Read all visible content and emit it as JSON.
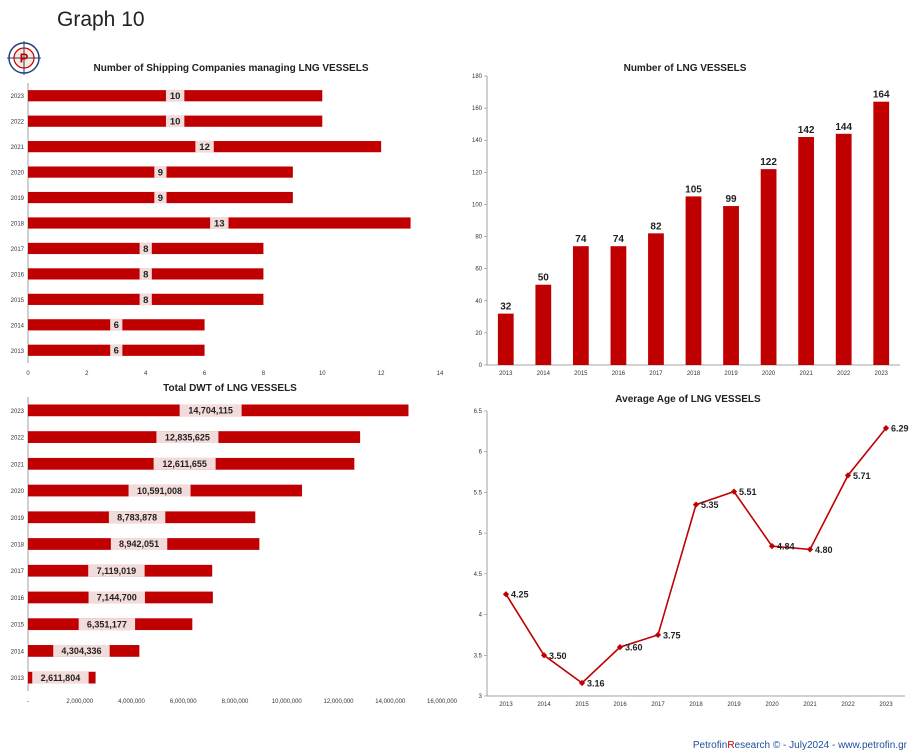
{
  "page": {
    "title": "Graph 10",
    "footer_brand_a": "Petrofin",
    "footer_brand_accent": "R",
    "footer_brand_b": "esearch © - July2024 - www.petrofin.gr",
    "bar_color": "#c00000",
    "label_bg": "#f2dcdb",
    "logo_letter": "P"
  },
  "chart_data": [
    {
      "id": "companies",
      "type": "bar",
      "orientation": "horizontal",
      "title": "Number of Shipping Companies managing LNG VESSELS",
      "categories": [
        "2023",
        "2022",
        "2021",
        "2020",
        "2019",
        "2018",
        "2017",
        "2016",
        "2015",
        "2014",
        "2013"
      ],
      "values": [
        10,
        10,
        12,
        9,
        9,
        13,
        8,
        8,
        8,
        6,
        6
      ],
      "value_labels": [
        "10",
        "10",
        "12",
        "9",
        "9",
        "13",
        "8",
        "8",
        "8",
        "6",
        "6"
      ],
      "xlim": [
        0,
        14
      ],
      "xticks": [
        0,
        2,
        4,
        6,
        8,
        10,
        12,
        14
      ],
      "xtick_labels": [
        "0",
        "2",
        "4",
        "6",
        "8",
        "10",
        "12",
        "14"
      ],
      "grid": false
    },
    {
      "id": "vessels",
      "type": "bar",
      "orientation": "vertical",
      "title": "Number of LNG  VESSELS",
      "categories": [
        "2013",
        "2014",
        "2015",
        "2016",
        "2017",
        "2018",
        "2019",
        "2020",
        "2021",
        "2022",
        "2023"
      ],
      "values": [
        32,
        50,
        74,
        74,
        82,
        105,
        99,
        122,
        142,
        144,
        164
      ],
      "value_labels": [
        "32",
        "50",
        "74",
        "74",
        "82",
        "105",
        "99",
        "122",
        "142",
        "144",
        "164"
      ],
      "ylim": [
        0,
        180
      ],
      "yticks": [
        0,
        20,
        40,
        60,
        80,
        100,
        120,
        140,
        160,
        180
      ],
      "ytick_labels": [
        "0",
        "20",
        "40",
        "60",
        "80",
        "100",
        "120",
        "140",
        "160",
        "180"
      ],
      "grid": false
    },
    {
      "id": "dwt",
      "type": "bar",
      "orientation": "horizontal",
      "title": "Total DWT of LNG VESSELS",
      "categories": [
        "2023",
        "2022",
        "2021",
        "2020",
        "2019",
        "2018",
        "2017",
        "2016",
        "2015",
        "2014",
        "2013"
      ],
      "values": [
        14704115,
        12835625,
        12611655,
        10591008,
        8783878,
        8942051,
        7119019,
        7144700,
        6351177,
        4304336,
        2611804
      ],
      "value_labels": [
        "14,704,115",
        "12,835,625",
        "12,611,655",
        "10,591,008",
        "8,783,878",
        "8,942,051",
        "7,119,019",
        "7,144,700",
        "6,351,177",
        "4,304,336",
        "2,611,804"
      ],
      "xlim": [
        0,
        16000000
      ],
      "xticks": [
        0,
        2000000,
        4000000,
        6000000,
        8000000,
        10000000,
        12000000,
        14000000,
        16000000
      ],
      "xtick_labels": [
        "-",
        "2,000,000",
        "4,000,000",
        "6,000,000",
        "8,000,000",
        "10,000,000",
        "12,000,000",
        "14,000,000",
        "16,000,000"
      ],
      "grid": false
    },
    {
      "id": "age",
      "type": "line",
      "title": "Average Age of LNG VESSELS",
      "categories": [
        "2013",
        "2014",
        "2015",
        "2016",
        "2017",
        "2018",
        "2019",
        "2020",
        "2021",
        "2022",
        "2023"
      ],
      "values": [
        4.25,
        3.5,
        3.16,
        3.6,
        3.75,
        5.35,
        5.51,
        4.84,
        4.8,
        5.71,
        6.29
      ],
      "value_labels": [
        "4.25",
        "3.50",
        "3.16",
        "3.60",
        "3.75",
        "5.35",
        "5.51",
        "4.84",
        "4.80",
        "5.71",
        "6.29"
      ],
      "ylim": [
        3,
        6.5
      ],
      "yticks": [
        3,
        3.5,
        4,
        4.5,
        5,
        5.5,
        6,
        6.5
      ],
      "ytick_labels": [
        "3",
        "3.5",
        "4",
        "4.5",
        "5",
        "5.5",
        "6",
        "6.5"
      ],
      "grid": false
    }
  ]
}
